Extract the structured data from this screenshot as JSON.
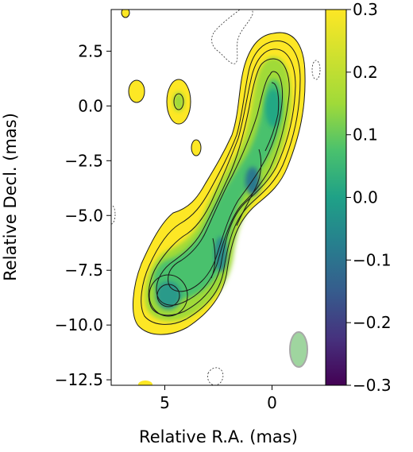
{
  "chart_data": {
    "type": "heatmap",
    "title": "",
    "xlabel": "Relative R.A. (mas)",
    "ylabel": "Relative Decl. (mas)",
    "xlim": [
      7.5,
      -2.5
    ],
    "ylim": [
      -12.75,
      4.4
    ],
    "x_ticks": [
      5,
      0
    ],
    "x_tick_labels": [
      "5",
      "0"
    ],
    "y_ticks": [
      2.5,
      0.0,
      -2.5,
      -5.0,
      -7.5,
      -10.0,
      -12.5
    ],
    "y_tick_labels": [
      "2.5",
      "0.0",
      "−2.5",
      "−5.0",
      "−7.5",
      "−10.0",
      "−12.5"
    ],
    "colorbar": {
      "range": [
        -0.3,
        0.3
      ],
      "ticks": [
        0.3,
        0.2,
        0.1,
        0.0,
        -0.1,
        -0.2,
        -0.3
      ],
      "tick_labels": [
        "0.3",
        "0.2",
        "0.1",
        "0.0",
        "−0.1",
        "−0.2",
        "−0.3"
      ],
      "colormap": "viridis"
    },
    "emission_components": [
      {
        "x": 0.0,
        "y": 0.0,
        "value": 0.12
      },
      {
        "x": 0.9,
        "y": -3.2,
        "value": 0.02
      },
      {
        "x": 2.2,
        "y": -5.2,
        "value": 0.08
      },
      {
        "x": 2.6,
        "y": -7.2,
        "value": 0.06
      },
      {
        "x": 4.9,
        "y": -8.5,
        "value": 0.04
      },
      {
        "x": 4.5,
        "y": 0.2,
        "value": 0.18
      },
      {
        "x": 6.1,
        "y": 0.3,
        "value": 0.24
      }
    ],
    "beam": {
      "x": 1.2,
      "y": -11.0,
      "major": 2.4,
      "minor": 0.8,
      "color": "#9fd59f"
    }
  }
}
